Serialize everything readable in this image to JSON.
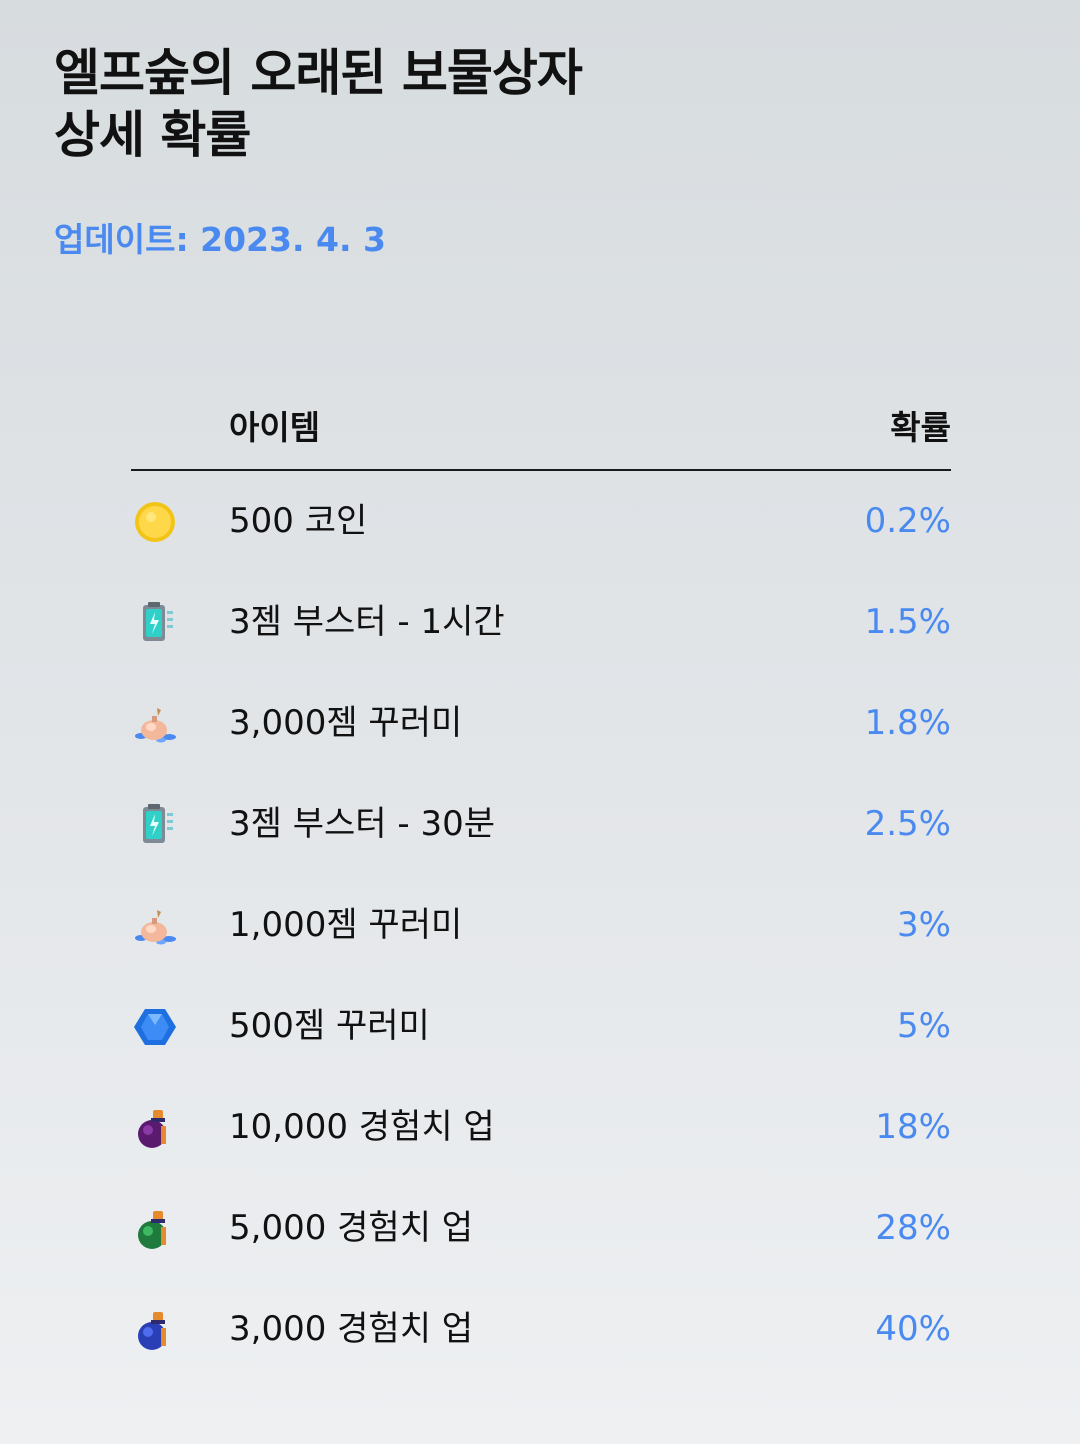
{
  "header": {
    "title_line1": "엘프숲의 오래된 보물상자",
    "title_line2": "상세 확률",
    "updated": "업데이트: 2023. 4. 3"
  },
  "table": {
    "col_item": "아이템",
    "col_prob": "확률",
    "rows": [
      {
        "icon": "gold-coin-icon",
        "name": "500 코인",
        "prob": "0.2%"
      },
      {
        "icon": "battery-booster-icon",
        "name": "3젬 부스터 - 1시간",
        "prob": "1.5%"
      },
      {
        "icon": "gem-pouch-icon",
        "name": "3,000젬 꾸러미",
        "prob": "1.8%"
      },
      {
        "icon": "battery-booster-icon",
        "name": "3젬 부스터 - 30분",
        "prob": "2.5%"
      },
      {
        "icon": "gem-pouch-icon",
        "name": "1,000젬 꾸러미",
        "prob": "3%"
      },
      {
        "icon": "blue-gem-icon",
        "name": "500젬 꾸러미",
        "prob": "5%"
      },
      {
        "icon": "purple-potion-icon",
        "name": "10,000 경험치 업",
        "prob": "18%"
      },
      {
        "icon": "green-potion-icon",
        "name": "5,000 경험치 업",
        "prob": "28%"
      },
      {
        "icon": "blue-potion-icon",
        "name": "3,000 경험치 업",
        "prob": "40%"
      }
    ]
  },
  "colors": {
    "accent": "#4a8af0",
    "text": "#111111"
  }
}
